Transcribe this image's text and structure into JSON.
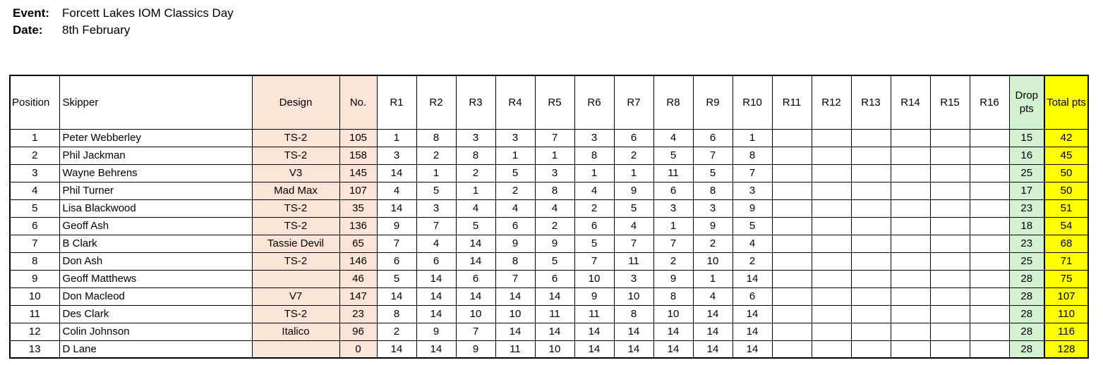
{
  "page": {
    "event_label": "Event:",
    "event_value": "Forcett Lakes IOM Classics Day",
    "date_label": "Date:",
    "date_value": "8th February"
  },
  "colors": {
    "design_no_column_bg": "#FCE4D6",
    "drop_column_bg": "#D2F2D2",
    "total_column_bg": "#FFFF00",
    "grid_border": "#000000"
  },
  "table": {
    "race_count": 16,
    "headers": [
      "Position",
      "Skipper",
      "Design",
      "No.",
      "R1",
      "R2",
      "R3",
      "R4",
      "R5",
      "R6",
      "R7",
      "R8",
      "R9",
      "R10",
      "R11",
      "R12",
      "R13",
      "R14",
      "R15",
      "R16",
      "Drop pts",
      "Total pts"
    ],
    "rows": [
      {
        "position": "1",
        "skipper": "Peter Webberley",
        "design": "TS-2",
        "no": "105",
        "races": [
          "1",
          "8",
          "3",
          "3",
          "7",
          "3",
          "6",
          "4",
          "6",
          "1"
        ],
        "drop": "15",
        "total": "42"
      },
      {
        "position": "2",
        "skipper": "Phil Jackman",
        "design": "TS-2",
        "no": "158",
        "races": [
          "3",
          "2",
          "8",
          "1",
          "1",
          "8",
          "2",
          "5",
          "7",
          "8"
        ],
        "drop": "16",
        "total": "45"
      },
      {
        "position": "3",
        "skipper": "Wayne Behrens",
        "design": "V3",
        "no": "145",
        "races": [
          "14",
          "1",
          "2",
          "5",
          "3",
          "1",
          "1",
          "11",
          "5",
          "7"
        ],
        "drop": "25",
        "total": "50"
      },
      {
        "position": "4",
        "skipper": "Phil Turner",
        "design": "Mad Max",
        "no": "107",
        "races": [
          "4",
          "5",
          "1",
          "2",
          "8",
          "4",
          "9",
          "6",
          "8",
          "3"
        ],
        "drop": "17",
        "total": "50"
      },
      {
        "position": "5",
        "skipper": "Lisa Blackwood",
        "design": "TS-2",
        "no": "35",
        "races": [
          "14",
          "3",
          "4",
          "4",
          "4",
          "2",
          "5",
          "3",
          "3",
          "9"
        ],
        "drop": "23",
        "total": "51"
      },
      {
        "position": "6",
        "skipper": "Geoff Ash",
        "design": "TS-2",
        "no": "136",
        "races": [
          "9",
          "7",
          "5",
          "6",
          "2",
          "6",
          "4",
          "1",
          "9",
          "5"
        ],
        "drop": "18",
        "total": "54"
      },
      {
        "position": "7",
        "skipper": "B Clark",
        "design": "Tassie Devil",
        "no": "65",
        "races": [
          "7",
          "4",
          "14",
          "9",
          "9",
          "5",
          "7",
          "7",
          "2",
          "4"
        ],
        "drop": "23",
        "total": "68"
      },
      {
        "position": "8",
        "skipper": "Don Ash",
        "design": "TS-2",
        "no": "146",
        "races": [
          "6",
          "6",
          "14",
          "8",
          "5",
          "7",
          "11",
          "2",
          "10",
          "2"
        ],
        "drop": "25",
        "total": "71"
      },
      {
        "position": "9",
        "skipper": "Geoff Matthews",
        "design": "",
        "no": "46",
        "races": [
          "5",
          "14",
          "6",
          "7",
          "6",
          "10",
          "3",
          "9",
          "1",
          "14"
        ],
        "drop": "28",
        "total": "75"
      },
      {
        "position": "10",
        "skipper": "Don Macleod",
        "design": "V7",
        "no": "147",
        "races": [
          "14",
          "14",
          "14",
          "14",
          "14",
          "9",
          "10",
          "8",
          "4",
          "6"
        ],
        "drop": "28",
        "total": "107"
      },
      {
        "position": "11",
        "skipper": "Des Clark",
        "design": "TS-2",
        "no": "23",
        "races": [
          "8",
          "14",
          "10",
          "10",
          "11",
          "11",
          "8",
          "10",
          "14",
          "14"
        ],
        "drop": "28",
        "total": "110"
      },
      {
        "position": "12",
        "skipper": "Colin Johnson",
        "design": "Italico",
        "no": "96",
        "races": [
          "2",
          "9",
          "7",
          "14",
          "14",
          "14",
          "14",
          "14",
          "14",
          "14"
        ],
        "drop": "28",
        "total": "116"
      },
      {
        "position": "13",
        "skipper": "D Lane",
        "design": "",
        "no": "0",
        "races": [
          "14",
          "14",
          "9",
          "11",
          "10",
          "14",
          "14",
          "14",
          "14",
          "14"
        ],
        "drop": "28",
        "total": "128"
      }
    ]
  }
}
